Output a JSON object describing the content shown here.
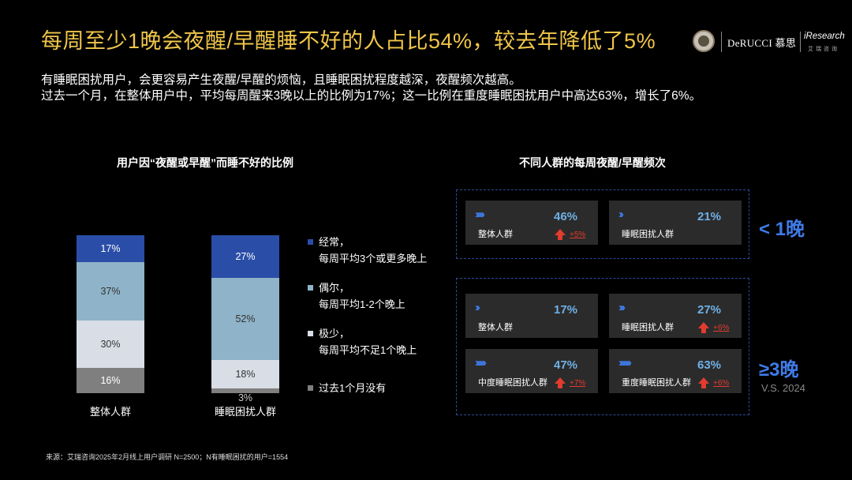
{
  "title": "每周至少1晚会夜醒/早醒睡不好的人占比54%，较去年降低了5%",
  "subtitle_lines": [
    "有睡眠困扰用户，会更容易产生夜醒/早醒的烦恼，且睡眠困扰程度越深，夜醒频次越高。",
    "过去一个月，在整体用户中，平均每周醒来3晚以上的比例为17%；这一比例在重度睡眠困扰用户中高达63%，增长了6%。"
  ],
  "logo": {
    "brand": "DeRUCCI 慕思",
    "partner": "iResearch",
    "partner_sub": "艾瑞咨询"
  },
  "left_chart_title": "用户因“夜醒或早醒”而睡不好的比例",
  "right_panel_title": "不同人群的每周夜醒/早醒频次",
  "chart_data": {
    "type": "bar",
    "stacked": true,
    "percent": true,
    "categories": [
      "整体人群",
      "睡眠困扰人群"
    ],
    "series": [
      {
        "name": "过去1个月没有",
        "values": [
          16,
          3
        ],
        "value_labels": [
          "16%",
          "3%"
        ],
        "color": "#7f7f7f"
      },
      {
        "name": "极少，每周平均不足1个晚上",
        "values": [
          30,
          18
        ],
        "value_labels": [
          "30%",
          "18%"
        ],
        "color": "#d9dde6"
      },
      {
        "name": "偶尔，每周平均1-2个晚上",
        "values": [
          37,
          52
        ],
        "value_labels": [
          "37%",
          "52%"
        ],
        "color": "#8fb3c8"
      },
      {
        "name": "经常，每周平均3个或更多晚上",
        "values": [
          17,
          27
        ],
        "value_labels": [
          "17%",
          "27%"
        ],
        "color": "#2a4ea8"
      }
    ],
    "legend": [
      {
        "line1": "经常，",
        "line2": "每周平均3个或更多晚上",
        "color": "#2a4ea8"
      },
      {
        "line1": "偶尔，",
        "line2": "每周平均1-2个晚上",
        "color": "#8fb3c8"
      },
      {
        "line1": "极少，",
        "line2": "每周平均不足1个晚上",
        "color": "#d9dde6"
      },
      {
        "line1": "过去1个月没有",
        "line2": "",
        "color": "#7f7f7f"
      }
    ]
  },
  "groups": [
    {
      "label": "< 1晚",
      "cards": [
        {
          "chevrons": "›››››",
          "value": "46%",
          "label": "整体人群",
          "change": "+5%"
        },
        {
          "chevrons": "››",
          "value": "21%",
          "label": "睡眠困扰人群",
          "change": ""
        }
      ]
    },
    {
      "label": "≥3晚",
      "note": "V.S. 2024",
      "cards": [
        {
          "chevrons": "››",
          "value": "17%",
          "label": "整体人群",
          "change": ""
        },
        {
          "chevrons": "›››",
          "value": "27%",
          "label": "睡眠困扰人群",
          "change": "+6%"
        },
        {
          "chevrons": "››››››",
          "value": "47%",
          "label": "中度睡眠困扰人群",
          "change": "+7%"
        },
        {
          "chevrons": "›››››››",
          "value": "63%",
          "label": "重度睡眠困扰人群",
          "change": "+6%"
        }
      ]
    }
  ],
  "colors": {
    "title": "#f0c64a",
    "accent_blue": "#3f7be6",
    "up_arrow": "#e33b2e",
    "card_bg": "#2b2b2b"
  },
  "source": "来源：艾瑞咨询2025年2月线上用户调研 N=2500；N有睡眠困扰的用户=1554"
}
